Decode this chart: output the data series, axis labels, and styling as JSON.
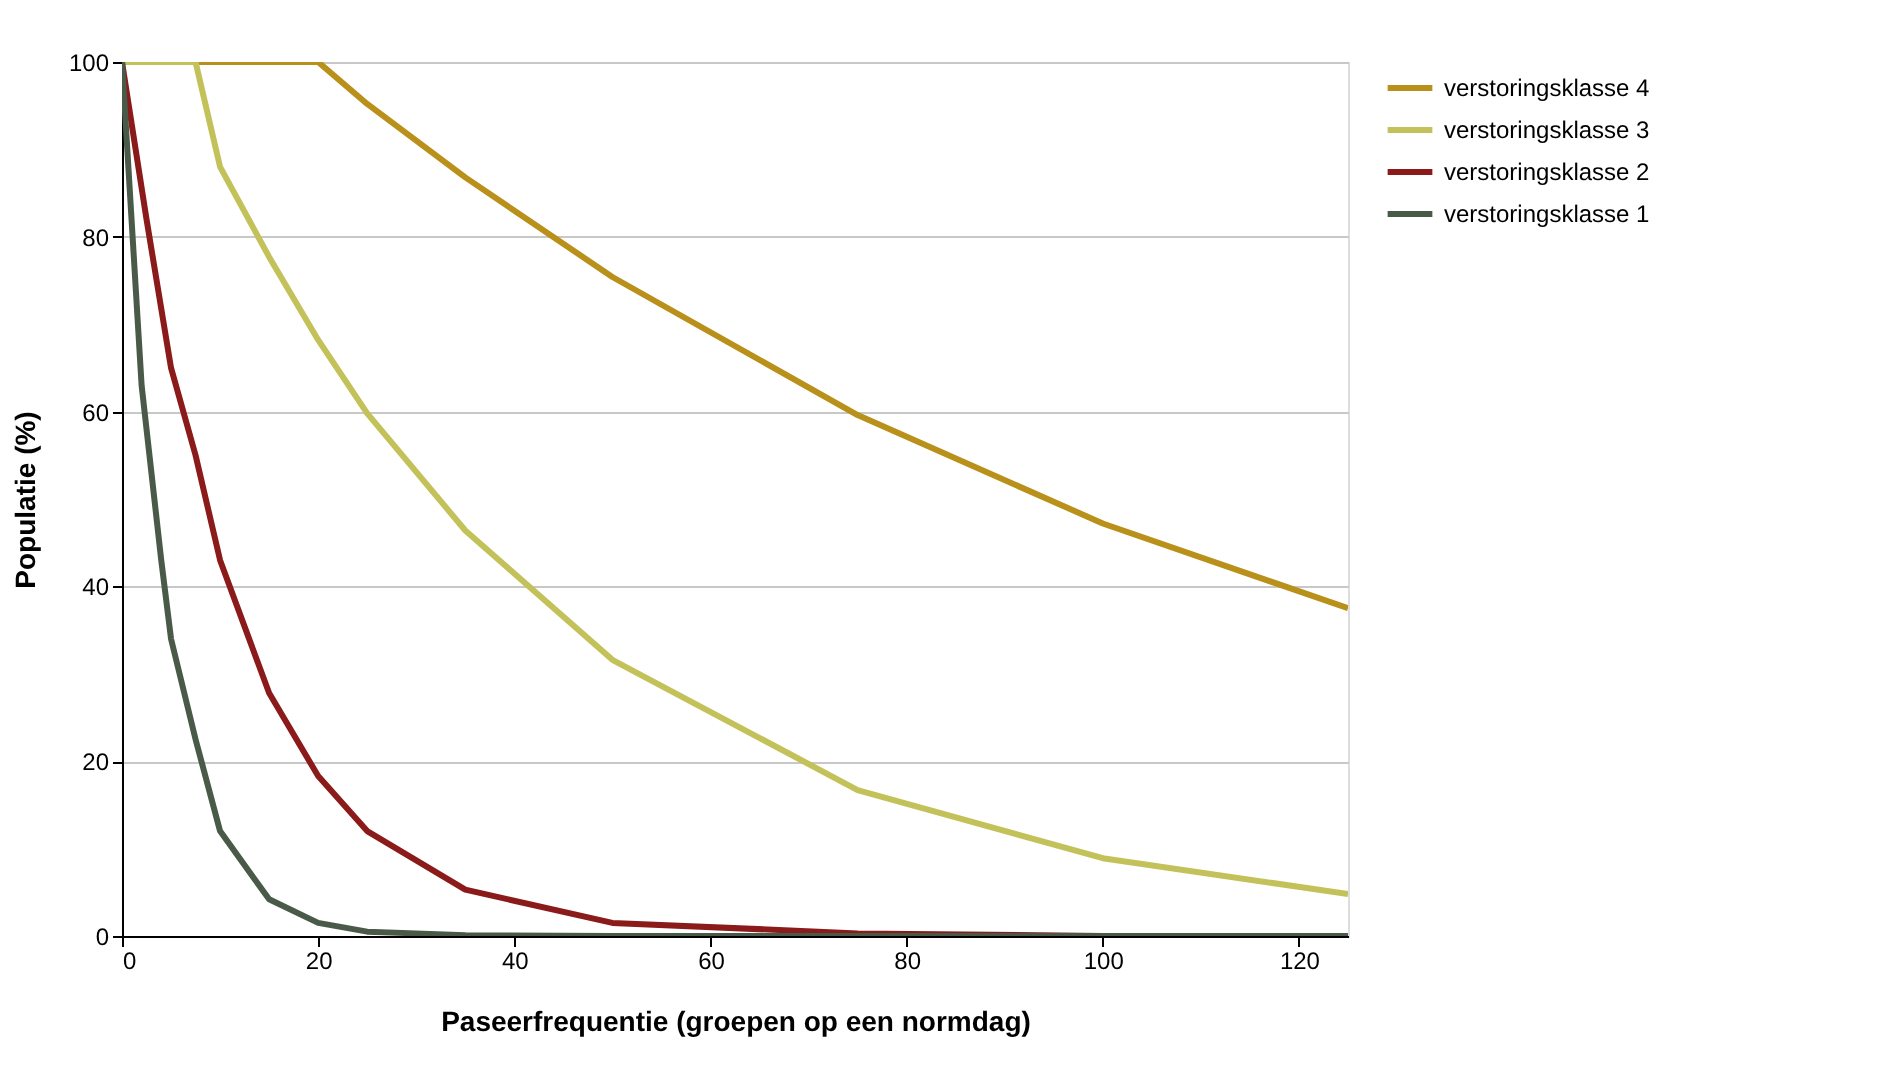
{
  "chart_data": {
    "type": "line",
    "xlabel": "Paseerfrequentie (groepen op een normdag)",
    "ylabel": "Populatie (%)",
    "xlim": [
      0,
      125
    ],
    "xticks": [
      0,
      20,
      40,
      60,
      80,
      100,
      120
    ],
    "ylim": [
      0,
      100
    ],
    "yticks": [
      0,
      20,
      40,
      60,
      80,
      100
    ],
    "grid": "y",
    "legend": "top right",
    "marker": "none",
    "line_style": "solid",
    "series": [
      {
        "name": "verstoringsklasse 4",
        "color": "#b8901a",
        "x": [
          0,
          20,
          25,
          35,
          50,
          75,
          100,
          125
        ],
        "values": [
          100,
          100,
          95.2,
          86.8,
          75.4,
          59.6,
          47.2,
          37.5
        ]
      },
      {
        "name": "verstoringsklasse 3",
        "color": "#c3c25a",
        "x": [
          0,
          7.5,
          10,
          15,
          20,
          25,
          35,
          50,
          75,
          100,
          125
        ],
        "values": [
          100,
          100,
          88,
          77.7,
          68.2,
          59.8,
          46.4,
          31.6,
          16.7,
          8.9,
          4.8
        ]
      },
      {
        "name": "verstoringsklasse 2",
        "color": "#8b1a1a",
        "x": [
          0,
          2.5,
          5,
          7.5,
          10,
          15,
          20,
          25,
          35,
          50,
          75,
          100,
          125
        ],
        "values": [
          100,
          82,
          65,
          55,
          43,
          27.8,
          18.3,
          12,
          5.3,
          1.5,
          0.3,
          0,
          0
        ]
      },
      {
        "name": "verstoringsklasse 1",
        "color": "#4a5a48",
        "x": [
          0,
          2,
          4,
          5,
          7.5,
          10,
          15,
          20,
          25,
          35,
          50,
          75,
          100,
          125
        ],
        "values": [
          100,
          63,
          43,
          34,
          22.5,
          12,
          4.2,
          1.5,
          0.5,
          0.1,
          0,
          0,
          0,
          0
        ]
      }
    ]
  }
}
